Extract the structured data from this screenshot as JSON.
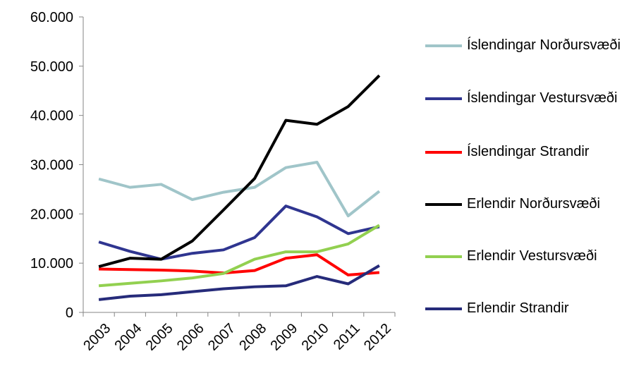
{
  "chart_data": {
    "type": "line",
    "categories": [
      "2003",
      "2004",
      "2005",
      "2006",
      "2007",
      "2008",
      "2009",
      "2010",
      "2011",
      "2012"
    ],
    "series": [
      {
        "name": "Íslendingar Norðursvæði",
        "color": "#a0c5c9",
        "values": [
          27100,
          25400,
          26000,
          22900,
          24400,
          25400,
          29400,
          30500,
          19600,
          24600
        ]
      },
      {
        "name": "Íslendingar Vestursvæði",
        "color": "#2f3590",
        "values": [
          14300,
          12400,
          10800,
          12000,
          12700,
          15200,
          21600,
          19400,
          16000,
          17400
        ]
      },
      {
        "name": "Íslendingar Strandir",
        "color": "#ff0000",
        "values": [
          8800,
          8700,
          8600,
          8400,
          8000,
          8500,
          11000,
          11700,
          7600,
          8100
        ]
      },
      {
        "name": "Erlendir Norðursvæði",
        "color": "#000000",
        "values": [
          9300,
          11000,
          10800,
          14500,
          20800,
          27200,
          39000,
          38200,
          41800,
          48100
        ]
      },
      {
        "name": "Erlendir Vestursvæði",
        "color": "#92d050",
        "values": [
          5400,
          5900,
          6400,
          7000,
          7900,
          10800,
          12300,
          12300,
          13900,
          17700
        ]
      },
      {
        "name": "Erlendir Strandir",
        "color": "#262b7a",
        "values": [
          2600,
          3300,
          3600,
          4200,
          4800,
          5200,
          5400,
          7300,
          5800,
          9500
        ]
      }
    ],
    "ylim": [
      0,
      60000
    ],
    "yticks": [
      0,
      {
        "value": 10000,
        "label": "10.000"
      },
      {
        "value": 20000,
        "label": "20.000"
      },
      {
        "value": 30000,
        "label": "30.000"
      },
      {
        "value": 40000,
        "label": "40.000"
      },
      {
        "value": 50000,
        "label": "50.000"
      },
      {
        "value": 60000,
        "label": "60.000"
      }
    ]
  }
}
